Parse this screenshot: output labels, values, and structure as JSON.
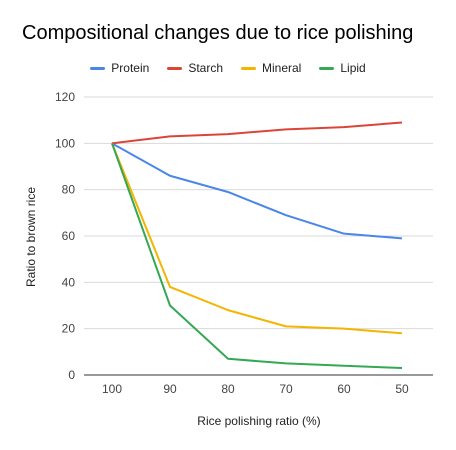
{
  "chart_data": {
    "type": "line",
    "title": "Compositional changes due to rice polishing",
    "xlabel": "Rice polishing ratio (%)",
    "ylabel": "Ratio to brown rice",
    "categories": [
      "100",
      "90",
      "80",
      "70",
      "60",
      "50"
    ],
    "ylim": [
      0,
      120
    ],
    "yticks": [
      "0",
      "20",
      "40",
      "60",
      "80",
      "100",
      "120"
    ],
    "grid": true,
    "legend_position": "top",
    "series": [
      {
        "name": "Protein",
        "color": "#4a86e8",
        "values": [
          100,
          86,
          79,
          69,
          61,
          59
        ]
      },
      {
        "name": "Starch",
        "color": "#db4437",
        "values": [
          100,
          103,
          104,
          106,
          107,
          109
        ]
      },
      {
        "name": "Mineral",
        "color": "#f4b400",
        "values": [
          100,
          38,
          28,
          21,
          20,
          18
        ]
      },
      {
        "name": "Lipid",
        "color": "#34a853",
        "values": [
          100,
          30,
          7,
          5,
          4,
          3
        ]
      }
    ]
  }
}
